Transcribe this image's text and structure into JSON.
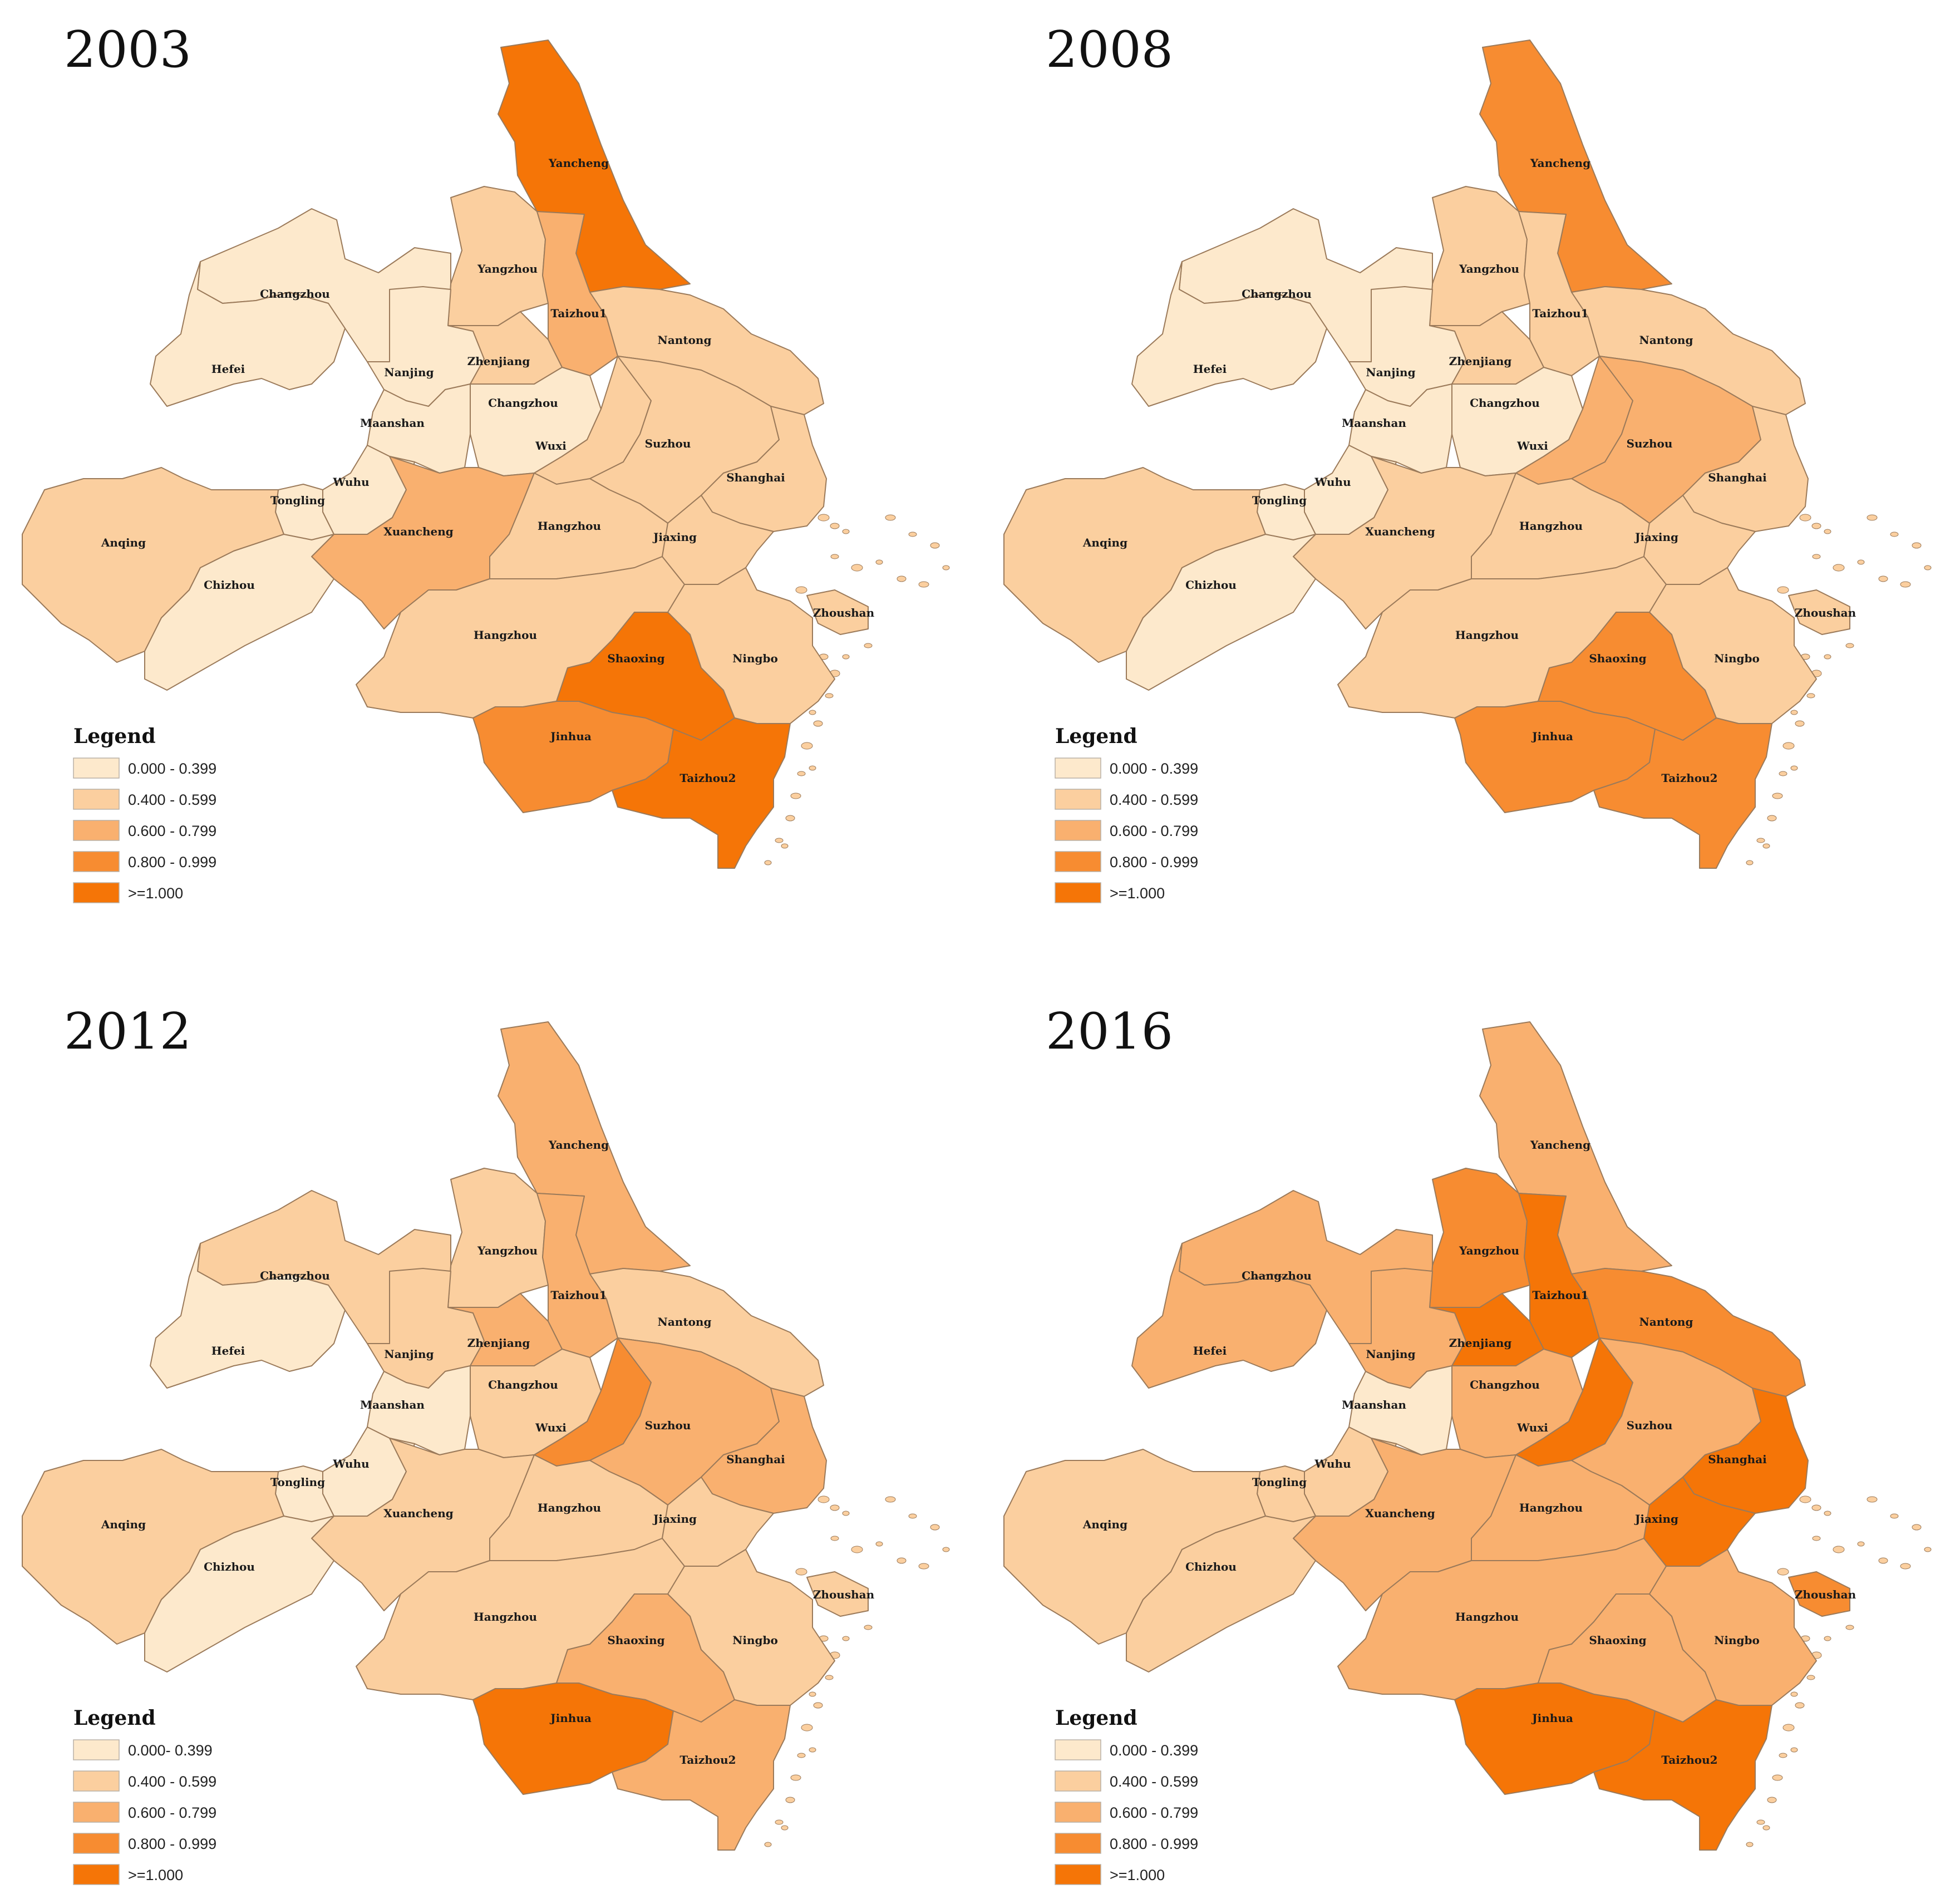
{
  "panels": [
    {
      "year": "2003",
      "legend_title": "Legend",
      "legend_labels": [
        "0.000 - 0.399",
        "0.400 - 0.599",
        "0.600 - 0.799",
        "0.800 - 0.999",
        ">=1.000"
      ],
      "cities": [
        {
          "name": "Yancheng",
          "cls": 4
        },
        {
          "name": "Yangzhou",
          "cls": 1
        },
        {
          "name": "Taizhou1",
          "cls": 2
        },
        {
          "name": "Nantong",
          "cls": 1
        },
        {
          "name": "Changzhou",
          "cls": 0,
          "key": "chuzhou"
        },
        {
          "name": "Hefei",
          "cls": 0
        },
        {
          "name": "Nanjing",
          "cls": 0
        },
        {
          "name": "Zhenjiang",
          "cls": 1
        },
        {
          "name": "Changzhou",
          "cls": 0,
          "key": "changzhou"
        },
        {
          "name": "Maanshan",
          "cls": 0
        },
        {
          "name": "Wuxi",
          "cls": 1
        },
        {
          "name": "Suzhou",
          "cls": 1
        },
        {
          "name": "Shanghai",
          "cls": 1
        },
        {
          "name": "Wuhu",
          "cls": 0
        },
        {
          "name": "Tongling",
          "cls": 0
        },
        {
          "name": "Xuancheng",
          "cls": 2
        },
        {
          "name": "Hangzhou",
          "cls": 1,
          "key": "huzhou"
        },
        {
          "name": "Jiaxing",
          "cls": 1
        },
        {
          "name": "Anqing",
          "cls": 1
        },
        {
          "name": "Chizhou",
          "cls": 0
        },
        {
          "name": "Zhoushan",
          "cls": 1
        },
        {
          "name": "Hangzhou",
          "cls": 1,
          "key": "hangzhou"
        },
        {
          "name": "Shaoxing",
          "cls": 4
        },
        {
          "name": "Ningbo",
          "cls": 1
        },
        {
          "name": "Jinhua",
          "cls": 3
        },
        {
          "name": "Taizhou2",
          "cls": 4
        }
      ]
    },
    {
      "year": "2008",
      "legend_title": "Legend",
      "legend_labels": [
        "0.000 - 0.399",
        "0.400 - 0.599",
        "0.600 - 0.799",
        "0.800 - 0.999",
        ">=1.000"
      ],
      "cities": [
        {
          "name": "Yancheng",
          "cls": 3
        },
        {
          "name": "Yangzhou",
          "cls": 1
        },
        {
          "name": "Taizhou1",
          "cls": 1
        },
        {
          "name": "Nantong",
          "cls": 1
        },
        {
          "name": "Changzhou",
          "cls": 0,
          "key": "chuzhou"
        },
        {
          "name": "Hefei",
          "cls": 0
        },
        {
          "name": "Nanjing",
          "cls": 0
        },
        {
          "name": "Zhenjiang",
          "cls": 1
        },
        {
          "name": "Changzhou",
          "cls": 0,
          "key": "changzhou"
        },
        {
          "name": "Maanshan",
          "cls": 0
        },
        {
          "name": "Wuxi",
          "cls": 2
        },
        {
          "name": "Suzhou",
          "cls": 2
        },
        {
          "name": "Shanghai",
          "cls": 1
        },
        {
          "name": "Wuhu",
          "cls": 0
        },
        {
          "name": "Tongling",
          "cls": 0
        },
        {
          "name": "Xuancheng",
          "cls": 1
        },
        {
          "name": "Hangzhou",
          "cls": 1,
          "key": "huzhou"
        },
        {
          "name": "Jiaxing",
          "cls": 1
        },
        {
          "name": "Anqing",
          "cls": 1
        },
        {
          "name": "Chizhou",
          "cls": 0
        },
        {
          "name": "Zhoushan",
          "cls": 1
        },
        {
          "name": "Hangzhou",
          "cls": 1,
          "key": "hangzhou"
        },
        {
          "name": "Shaoxing",
          "cls": 3
        },
        {
          "name": "Ningbo",
          "cls": 1
        },
        {
          "name": "Jinhua",
          "cls": 3
        },
        {
          "name": "Taizhou2",
          "cls": 3
        }
      ]
    },
    {
      "year": "2012",
      "legend_title": "Legend",
      "legend_labels": [
        "0.000- 0.399",
        "0.400 - 0.599",
        "0.600 - 0.799",
        "0.800 - 0.999",
        ">=1.000"
      ],
      "cities": [
        {
          "name": "Yancheng",
          "cls": 2
        },
        {
          "name": "Yangzhou",
          "cls": 1
        },
        {
          "name": "Taizhou1",
          "cls": 2
        },
        {
          "name": "Nantong",
          "cls": 1
        },
        {
          "name": "Changzhou",
          "cls": 1,
          "key": "chuzhou"
        },
        {
          "name": "Hefei",
          "cls": 0
        },
        {
          "name": "Nanjing",
          "cls": 1
        },
        {
          "name": "Zhenjiang",
          "cls": 2
        },
        {
          "name": "Changzhou",
          "cls": 1,
          "key": "changzhou"
        },
        {
          "name": "Maanshan",
          "cls": 0
        },
        {
          "name": "Wuxi",
          "cls": 3
        },
        {
          "name": "Suzhou",
          "cls": 2
        },
        {
          "name": "Shanghai",
          "cls": 2
        },
        {
          "name": "Wuhu",
          "cls": 0
        },
        {
          "name": "Tongling",
          "cls": 0
        },
        {
          "name": "Xuancheng",
          "cls": 1
        },
        {
          "name": "Hangzhou",
          "cls": 1,
          "key": "huzhou"
        },
        {
          "name": "Jiaxing",
          "cls": 1
        },
        {
          "name": "Anqing",
          "cls": 1
        },
        {
          "name": "Chizhou",
          "cls": 0
        },
        {
          "name": "Zhoushan",
          "cls": 1
        },
        {
          "name": "Hangzhou",
          "cls": 1,
          "key": "hangzhou"
        },
        {
          "name": "Shaoxing",
          "cls": 2
        },
        {
          "name": "Ningbo",
          "cls": 1
        },
        {
          "name": "Jinhua",
          "cls": 4
        },
        {
          "name": "Taizhou2",
          "cls": 2
        }
      ]
    },
    {
      "year": "2016",
      "legend_title": "Legend",
      "legend_labels": [
        "0.000 - 0.399",
        "0.400 - 0.599",
        "0.600 - 0.799",
        "0.800 - 0.999",
        ">=1.000"
      ],
      "cities": [
        {
          "name": "Yancheng",
          "cls": 2
        },
        {
          "name": "Yangzhou",
          "cls": 3
        },
        {
          "name": "Taizhou1",
          "cls": 4
        },
        {
          "name": "Nantong",
          "cls": 3
        },
        {
          "name": "Changzhou",
          "cls": 2,
          "key": "chuzhou"
        },
        {
          "name": "Hefei",
          "cls": 2
        },
        {
          "name": "Nanjing",
          "cls": 2
        },
        {
          "name": "Zhenjiang",
          "cls": 4
        },
        {
          "name": "Changzhou",
          "cls": 2,
          "key": "changzhou"
        },
        {
          "name": "Maanshan",
          "cls": 0
        },
        {
          "name": "Wuxi",
          "cls": 4
        },
        {
          "name": "Suzhou",
          "cls": 2
        },
        {
          "name": "Shanghai",
          "cls": 4
        },
        {
          "name": "Wuhu",
          "cls": 1
        },
        {
          "name": "Tongling",
          "cls": 1
        },
        {
          "name": "Xuancheng",
          "cls": 2
        },
        {
          "name": "Hangzhou",
          "cls": 2,
          "key": "huzhou"
        },
        {
          "name": "Jiaxing",
          "cls": 4
        },
        {
          "name": "Anqing",
          "cls": 1
        },
        {
          "name": "Chizhou",
          "cls": 1
        },
        {
          "name": "Zhoushan",
          "cls": 3
        },
        {
          "name": "Hangzhou",
          "cls": 2,
          "key": "hangzhou"
        },
        {
          "name": "Shaoxing",
          "cls": 2
        },
        {
          "name": "Ningbo",
          "cls": 2
        },
        {
          "name": "Jinhua",
          "cls": 4
        },
        {
          "name": "Taizhou2",
          "cls": 4
        }
      ]
    }
  ],
  "palette": [
    "#fde9cc",
    "#fbcf9f",
    "#f9b06f",
    "#f78c31",
    "#f57507"
  ],
  "outline_color": "#9b7a5a"
}
